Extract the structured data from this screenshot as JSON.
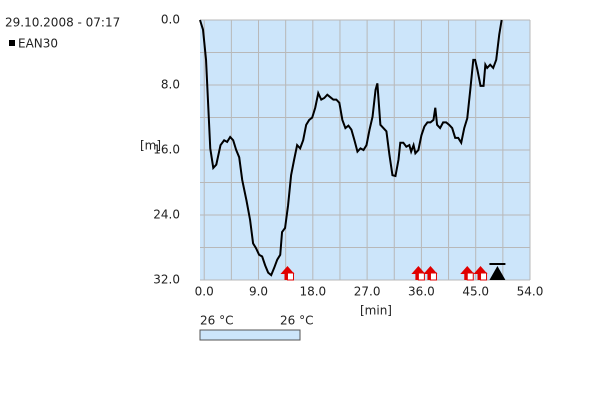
{
  "chart_data": {
    "type": "line",
    "subtitle": "29.10.2008 - 07:17",
    "ylabel": "[m]",
    "xlabel": "[min]",
    "xlim": [
      -0.7,
      54
    ],
    "ylim": [
      0,
      32
    ],
    "y_reversed": true,
    "grid": true,
    "plot_color": "#cce5fa",
    "xticks": [
      {
        "value": 0,
        "label": "0.0"
      },
      {
        "value": 9,
        "label": "9.0"
      },
      {
        "value": 18,
        "label": "18.0"
      },
      {
        "value": 27,
        "label": "27.0"
      },
      {
        "value": 36,
        "label": "36.0"
      },
      {
        "value": 45,
        "label": "45.0"
      },
      {
        "value": 54,
        "label": "54.0"
      }
    ],
    "yticks": [
      {
        "value": 0,
        "label": "0.0"
      },
      {
        "value": 8,
        "label": "8.0"
      },
      {
        "value": 16,
        "label": "16.0"
      },
      {
        "value": 24,
        "label": "24.0"
      },
      {
        "value": 32,
        "label": "32.0"
      }
    ],
    "x_minor_ticks": [
      4.5,
      13.5,
      22.5,
      31.5,
      40.5,
      49.5
    ],
    "y_minor_ticks": [
      4,
      12,
      20,
      28
    ],
    "series": [
      {
        "name": "EAN30",
        "color": "#000000",
        "x": [
          -0.7,
          -0.2,
          0.3,
          1.0,
          1.5,
          2.0,
          2.7,
          3.3,
          3.8,
          4.3,
          4.8,
          5.3,
          5.8,
          6.3,
          7.0,
          7.6,
          8.1,
          8.6,
          9.1,
          9.6,
          10.1,
          10.6,
          11.1,
          11.6,
          12.1,
          12.6,
          12.9,
          13.4,
          13.9,
          14.4,
          14.9,
          15.4,
          15.9,
          16.4,
          16.9,
          17.4,
          17.9,
          18.4,
          18.9,
          19.4,
          19.9,
          20.4,
          20.9,
          21.4,
          21.9,
          22.4,
          22.9,
          23.4,
          23.9,
          24.4,
          24.9,
          25.4,
          25.9,
          26.4,
          26.9,
          27.4,
          27.9,
          28.4,
          28.7,
          29.2,
          29.7,
          30.2,
          30.7,
          31.2,
          31.7,
          32.2,
          32.5,
          33.0,
          33.5,
          34.0,
          34.3,
          34.7,
          35.0,
          35.5,
          36.0,
          36.5,
          37.0,
          37.5,
          38.0,
          38.3,
          38.6,
          39.1,
          39.6,
          40.1,
          40.6,
          41.1,
          41.6,
          42.1,
          42.6,
          43.1,
          43.6,
          44.1,
          44.6,
          44.9,
          45.3,
          45.8,
          46.3,
          46.6,
          46.9,
          47.4,
          47.9,
          48.4,
          48.9,
          49.3
        ],
        "values": [
          0,
          1.2,
          4.9,
          15.8,
          18.2,
          17.8,
          15.4,
          14.8,
          15.0,
          14.4,
          14.8,
          16.0,
          16.9,
          19.7,
          22.2,
          24.6,
          27.5,
          28.1,
          28.9,
          29.1,
          30.2,
          31.1,
          31.4,
          30.5,
          29.5,
          28.9,
          26.1,
          25.6,
          22.8,
          19.1,
          17.2,
          15.4,
          15.8,
          14.8,
          12.9,
          12.3,
          12.0,
          10.8,
          9.0,
          9.8,
          9.6,
          9.2,
          9.5,
          9.8,
          9.8,
          10.2,
          12.3,
          13.3,
          13.0,
          13.5,
          14.8,
          16.2,
          15.8,
          16.0,
          15.4,
          13.5,
          11.9,
          8.6,
          7.8,
          12.9,
          13.3,
          13.7,
          16.6,
          19.1,
          19.2,
          17.2,
          15.1,
          15.1,
          15.6,
          15.4,
          16.2,
          15.4,
          16.4,
          16.0,
          14.2,
          13.1,
          12.6,
          12.6,
          12.3,
          10.8,
          12.9,
          13.3,
          12.6,
          12.6,
          12.9,
          13.3,
          14.5,
          14.5,
          15.1,
          13.3,
          12.1,
          8.6,
          4.9,
          4.9,
          6.2,
          8.1,
          8.1,
          5.5,
          5.9,
          5.5,
          5.9,
          4.9,
          1.8,
          0
        ]
      }
    ],
    "warning_events": [
      13.8,
      35.5,
      37.5,
      43.6,
      45.8
    ],
    "warning_color": "#e00000",
    "surface_event": 48.6,
    "temperature": {
      "start": "26 °C",
      "end": "26 °C"
    }
  }
}
